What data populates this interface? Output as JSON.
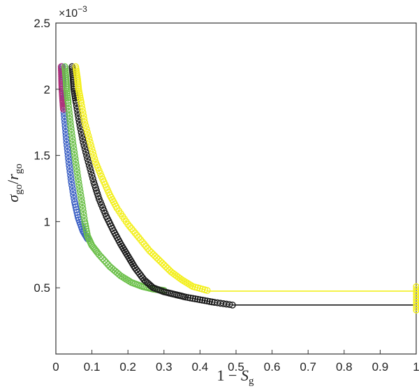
{
  "chart_data": {
    "type": "scatter",
    "title": "",
    "xlabel": "1 − S_g",
    "ylabel": "σ_go/r_go",
    "xlabel_parts": {
      "main": "1 − ",
      "var": "S",
      "sub": "g"
    },
    "ylabel_parts": {
      "sigma": "σ",
      "sub1": "go",
      "slash": "/",
      "r": "r",
      "sub2": "go"
    },
    "y_multiplier": {
      "base": "×10",
      "exp": "−3"
    },
    "xlim": [
      0,
      1
    ],
    "ylim": [
      0,
      2.5
    ],
    "x_ticks": [
      {
        "v": 0,
        "label": "0"
      },
      {
        "v": 0.1,
        "label": "0.1"
      },
      {
        "v": 0.2,
        "label": "0.2"
      },
      {
        "v": 0.3,
        "label": "0.3"
      },
      {
        "v": 0.4,
        "label": "0.4"
      },
      {
        "v": 0.5,
        "label": "0.5"
      },
      {
        "v": 0.6,
        "label": "0.6"
      },
      {
        "v": 0.7,
        "label": "0.7"
      },
      {
        "v": 0.8,
        "label": "0.8"
      },
      {
        "v": 0.9,
        "label": "0.9"
      },
      {
        "v": 1,
        "label": "1"
      }
    ],
    "y_ticks": [
      {
        "v": 0.5,
        "label": "0.5"
      },
      {
        "v": 1,
        "label": "1"
      },
      {
        "v": 1.5,
        "label": "1.5"
      },
      {
        "v": 2,
        "label": "2"
      },
      {
        "v": 2.5,
        "label": "2.5"
      }
    ],
    "grid": false,
    "legend": "none",
    "series": [
      {
        "color": "#3b5fc4",
        "marker": "circle-open",
        "points": [
          [
            0.018,
            2.17
          ],
          [
            0.018,
            2.08
          ],
          [
            0.018,
            2.0
          ],
          [
            0.02,
            1.9
          ],
          [
            0.025,
            1.75
          ],
          [
            0.03,
            1.6
          ],
          [
            0.036,
            1.45
          ],
          [
            0.043,
            1.3
          ],
          [
            0.052,
            1.15
          ],
          [
            0.062,
            1.03
          ],
          [
            0.075,
            0.93
          ],
          [
            0.088,
            0.87
          ]
        ]
      },
      {
        "color": "#b0307a",
        "marker": "circle-open",
        "points": [
          [
            0.015,
            2.17
          ],
          [
            0.016,
            2.08
          ],
          [
            0.017,
            2.0
          ],
          [
            0.019,
            1.92
          ],
          [
            0.021,
            1.85
          ]
        ]
      },
      {
        "color": "#6cc04a",
        "marker": "circle-open",
        "points": [
          [
            0.025,
            2.17
          ],
          [
            0.028,
            2.08
          ],
          [
            0.03,
            2.0
          ],
          [
            0.034,
            1.9
          ],
          [
            0.04,
            1.75
          ],
          [
            0.047,
            1.6
          ],
          [
            0.055,
            1.45
          ],
          [
            0.063,
            1.3
          ],
          [
            0.072,
            1.15
          ],
          [
            0.08,
            1.0
          ],
          [
            0.088,
            0.89
          ],
          [
            0.1,
            0.82
          ],
          [
            0.12,
            0.75
          ],
          [
            0.15,
            0.66
          ],
          [
            0.18,
            0.59
          ],
          [
            0.21,
            0.54
          ],
          [
            0.24,
            0.51
          ],
          [
            0.27,
            0.49
          ],
          [
            0.3,
            0.48
          ]
        ]
      },
      {
        "color": "#1a1a1a",
        "marker": "circle-open",
        "points": [
          [
            0.045,
            2.17
          ],
          [
            0.048,
            2.08
          ],
          [
            0.05,
            2.0
          ],
          [
            0.056,
            1.9
          ],
          [
            0.065,
            1.75
          ],
          [
            0.076,
            1.6
          ],
          [
            0.09,
            1.45
          ],
          [
            0.105,
            1.3
          ],
          [
            0.12,
            1.17
          ],
          [
            0.14,
            1.04
          ],
          [
            0.16,
            0.93
          ],
          [
            0.18,
            0.83
          ],
          [
            0.2,
            0.74
          ],
          [
            0.22,
            0.65
          ],
          [
            0.245,
            0.56
          ],
          [
            0.27,
            0.5
          ],
          [
            0.3,
            0.47
          ],
          [
            0.33,
            0.45
          ],
          [
            0.36,
            0.43
          ],
          [
            0.4,
            0.41
          ],
          [
            0.44,
            0.39
          ],
          [
            0.49,
            0.37
          ]
        ]
      },
      {
        "color": "#f3ef1e",
        "marker": "circle-open",
        "points": [
          [
            0.055,
            2.17
          ],
          [
            0.06,
            2.08
          ],
          [
            0.063,
            2.0
          ],
          [
            0.07,
            1.9
          ],
          [
            0.08,
            1.75
          ],
          [
            0.095,
            1.6
          ],
          [
            0.11,
            1.45
          ],
          [
            0.13,
            1.32
          ],
          [
            0.15,
            1.2
          ],
          [
            0.17,
            1.1
          ],
          [
            0.2,
            0.98
          ],
          [
            0.23,
            0.88
          ],
          [
            0.26,
            0.78
          ],
          [
            0.29,
            0.7
          ],
          [
            0.32,
            0.62
          ],
          [
            0.35,
            0.56
          ],
          [
            0.38,
            0.51
          ],
          [
            0.42,
            0.48
          ]
        ]
      }
    ],
    "lines": [
      {
        "color": "#1a1a1a",
        "points": [
          [
            0.49,
            0.37
          ],
          [
            1.0,
            0.37
          ]
        ]
      },
      {
        "color": "#f3ef1e",
        "points": [
          [
            0.42,
            0.475
          ],
          [
            1.0,
            0.475
          ]
        ]
      }
    ],
    "end_markers": [
      {
        "color": "#f3ef1e",
        "x": 1.0,
        "y_from": 0.33,
        "y_to": 0.52
      }
    ]
  }
}
